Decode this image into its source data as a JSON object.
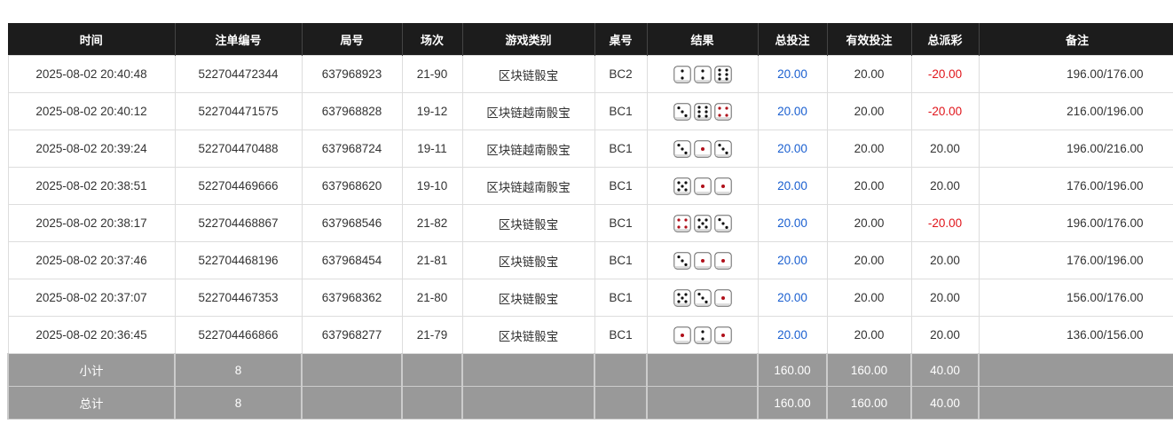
{
  "headers": [
    "时间",
    "注单编号",
    "局号",
    "场次",
    "游戏类别",
    "桌号",
    "结果",
    "总投注",
    "有效投注",
    "总派彩",
    "备注"
  ],
  "rows": [
    {
      "time": "2025-08-02 20:40:48",
      "bet_id": "522704472344",
      "round": "637968923",
      "session": "21-90",
      "game": "区块链骰宝",
      "table": "BC2",
      "dice": [
        2,
        2,
        6
      ],
      "total_bet": "20.00",
      "valid_bet": "20.00",
      "payout": "-20.00",
      "note": "196.00/176.00"
    },
    {
      "time": "2025-08-02 20:40:12",
      "bet_id": "522704471575",
      "round": "637968828",
      "session": "19-12",
      "game": "区块链越南骰宝",
      "table": "BC1",
      "dice": [
        3,
        6,
        4
      ],
      "total_bet": "20.00",
      "valid_bet": "20.00",
      "payout": "-20.00",
      "note": "216.00/196.00"
    },
    {
      "time": "2025-08-02 20:39:24",
      "bet_id": "522704470488",
      "round": "637968724",
      "session": "19-11",
      "game": "区块链越南骰宝",
      "table": "BC1",
      "dice": [
        3,
        1,
        3
      ],
      "total_bet": "20.00",
      "valid_bet": "20.00",
      "payout": "20.00",
      "note": "196.00/216.00"
    },
    {
      "time": "2025-08-02 20:38:51",
      "bet_id": "522704469666",
      "round": "637968620",
      "session": "19-10",
      "game": "区块链越南骰宝",
      "table": "BC1",
      "dice": [
        5,
        1,
        1
      ],
      "total_bet": "20.00",
      "valid_bet": "20.00",
      "payout": "20.00",
      "note": "176.00/196.00"
    },
    {
      "time": "2025-08-02 20:38:17",
      "bet_id": "522704468867",
      "round": "637968546",
      "session": "21-82",
      "game": "区块链骰宝",
      "table": "BC1",
      "dice": [
        4,
        5,
        3
      ],
      "total_bet": "20.00",
      "valid_bet": "20.00",
      "payout": "-20.00",
      "note": "196.00/176.00"
    },
    {
      "time": "2025-08-02 20:37:46",
      "bet_id": "522704468196",
      "round": "637968454",
      "session": "21-81",
      "game": "区块链骰宝",
      "table": "BC1",
      "dice": [
        3,
        1,
        1
      ],
      "total_bet": "20.00",
      "valid_bet": "20.00",
      "payout": "20.00",
      "note": "176.00/196.00"
    },
    {
      "time": "2025-08-02 20:37:07",
      "bet_id": "522704467353",
      "round": "637968362",
      "session": "21-80",
      "game": "区块链骰宝",
      "table": "BC1",
      "dice": [
        5,
        3,
        1
      ],
      "total_bet": "20.00",
      "valid_bet": "20.00",
      "payout": "20.00",
      "note": "156.00/176.00"
    },
    {
      "time": "2025-08-02 20:36:45",
      "bet_id": "522704466866",
      "round": "637968277",
      "session": "21-79",
      "game": "区块链骰宝",
      "table": "BC1",
      "dice": [
        1,
        2,
        1
      ],
      "total_bet": "20.00",
      "valid_bet": "20.00",
      "payout": "20.00",
      "note": "136.00/156.00"
    }
  ],
  "subtotal": {
    "label": "小计",
    "count": "8",
    "total_bet": "160.00",
    "valid_bet": "160.00",
    "payout": "40.00"
  },
  "grand_total": {
    "label": "总计",
    "count": "8",
    "total_bet": "160.00",
    "valid_bet": "160.00",
    "payout": "40.00"
  },
  "colors": {
    "header_bg": "#1c1c1c",
    "positive_bet": "#1a5fd0",
    "negative_payout": "#e0151b",
    "summary_bg": "#999999",
    "red_pip": "#b0101a"
  }
}
